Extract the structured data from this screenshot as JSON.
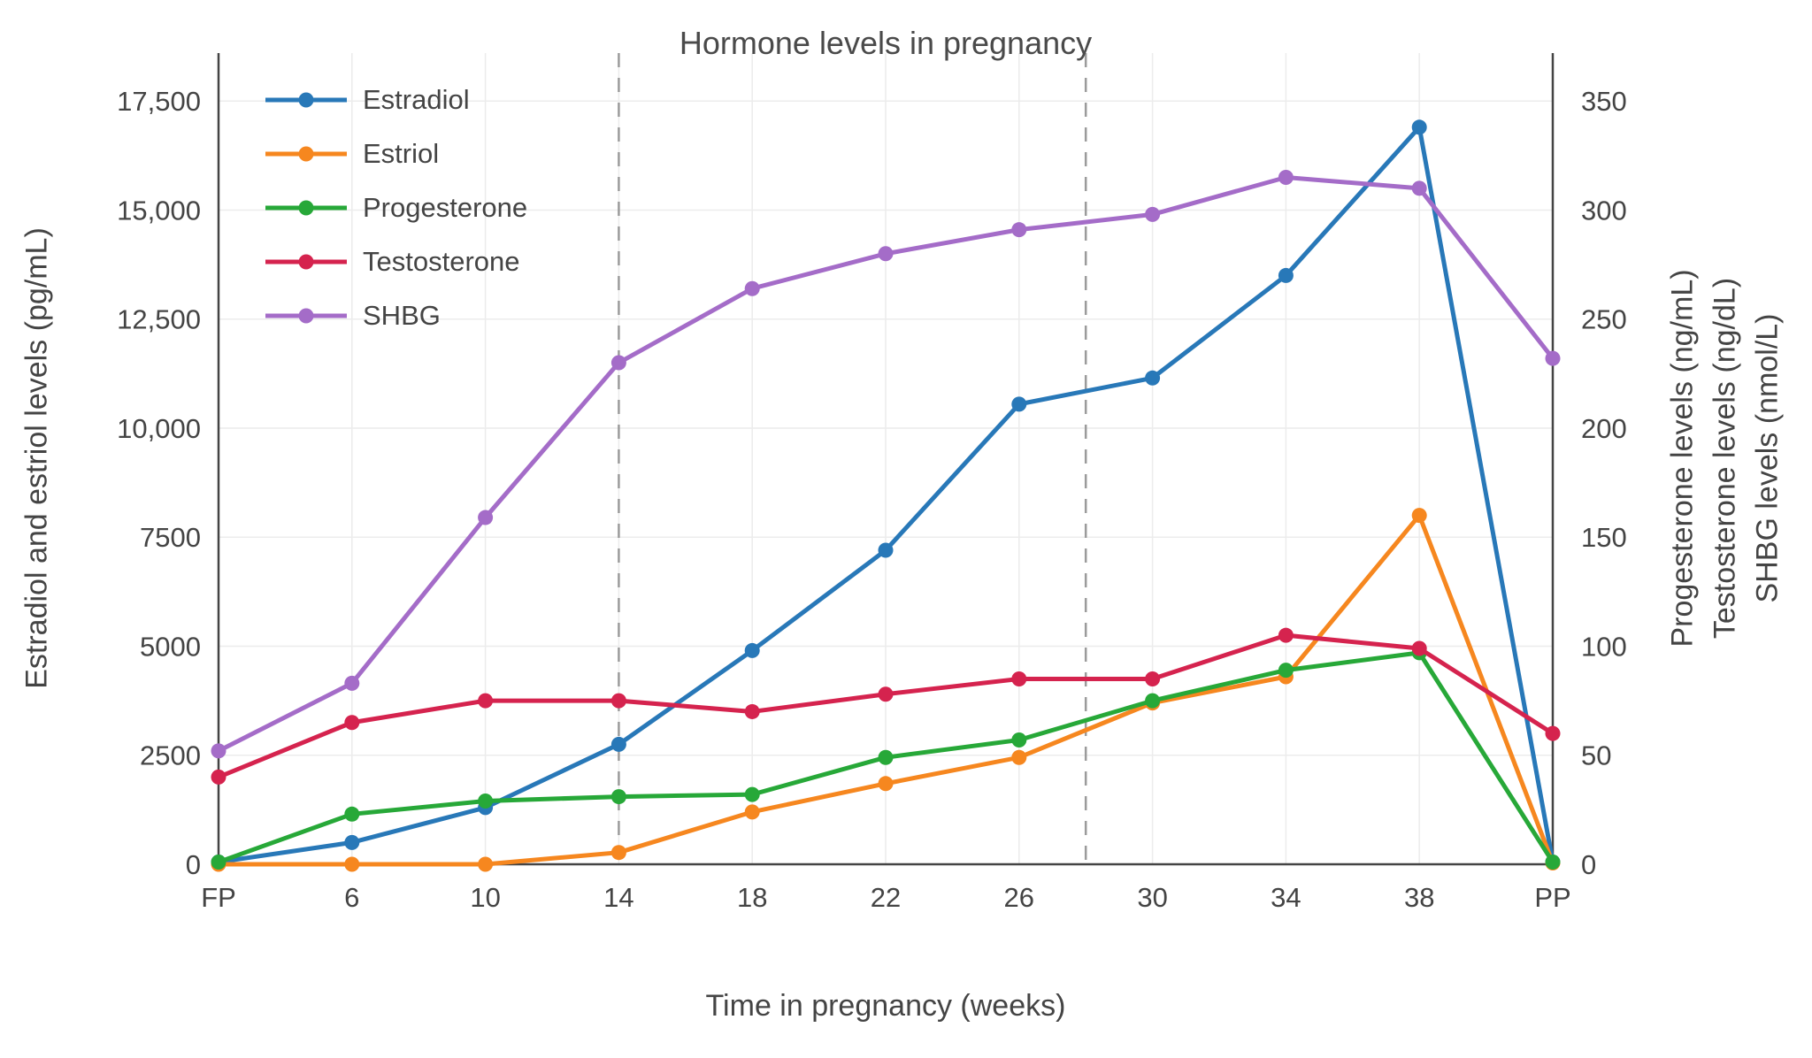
{
  "chart_data": {
    "type": "line",
    "title": "Hormone levels in pregnancy",
    "xlabel": "Time in pregnancy (weeks)",
    "ylabel_left": "Estradiol and estriol levels (pg/mL)",
    "ylabel_right": [
      "Progesterone levels (ng/mL)",
      "Testosterone levels (ng/dL)",
      "SHBG levels (nmol/L)"
    ],
    "x_categories": [
      "FP",
      "6",
      "10",
      "14",
      "18",
      "22",
      "26",
      "30",
      "34",
      "38",
      "PP"
    ],
    "left_axis": {
      "tick_labels": [
        "0",
        "2500",
        "5000",
        "7500",
        "10,000",
        "12,500",
        "15,000",
        "17,500"
      ],
      "tick_values": [
        0,
        2500,
        5000,
        7500,
        10000,
        12500,
        15000,
        17500
      ],
      "range": [
        0,
        18600
      ]
    },
    "right_axis": {
      "tick_labels": [
        "0",
        "50",
        "100",
        "150",
        "200",
        "250",
        "300",
        "350"
      ],
      "tick_values": [
        0,
        50,
        100,
        150,
        200,
        250,
        300,
        350
      ],
      "range": [
        0,
        372
      ]
    },
    "dashed_vline_indices": [
      3,
      6.5
    ],
    "grid": true,
    "legend_position": "top-left-inside",
    "series": [
      {
        "name": "Estradiol",
        "axis": "left",
        "color": "#2878b8",
        "values": [
          50,
          500,
          1300,
          2750,
          4900,
          7200,
          10550,
          11150,
          13500,
          16900,
          50
        ]
      },
      {
        "name": "Estriol",
        "axis": "left",
        "color": "#f6871f",
        "values": [
          0,
          0,
          0,
          270,
          1200,
          1850,
          2450,
          3700,
          4300,
          8000,
          30
        ]
      },
      {
        "name": "Progesterone",
        "axis": "right",
        "color": "#27a838",
        "values": [
          1,
          23,
          29,
          31,
          32,
          49,
          57,
          75,
          89,
          97,
          1
        ]
      },
      {
        "name": "Testosterone",
        "axis": "right",
        "color": "#d5234e",
        "values": [
          40,
          65,
          75,
          75,
          70,
          78,
          85,
          85,
          105,
          99,
          60
        ]
      },
      {
        "name": "SHBG",
        "axis": "right",
        "color": "#a46cc8",
        "values": [
          52,
          83,
          159,
          230,
          264,
          280,
          291,
          298,
          315,
          310,
          232
        ]
      }
    ]
  }
}
